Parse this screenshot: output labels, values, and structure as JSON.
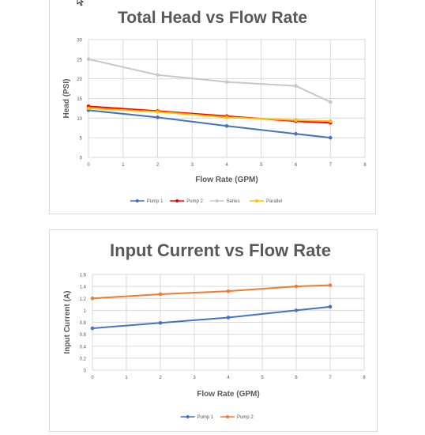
{
  "chart_data": [
    {
      "type": "line",
      "title": "Total Head vs Flow Rate",
      "xlabel": "Flow Rate (GPM)",
      "ylabel": "Head (PSI)",
      "xlim": [
        0,
        8
      ],
      "ylim": [
        0,
        30
      ],
      "xticks": [
        "0",
        "1",
        "2",
        "3",
        "4",
        "5",
        "6",
        "7",
        "8"
      ],
      "yticks": [
        "0",
        "5",
        "10",
        "15",
        "20",
        "25",
        "30"
      ],
      "grid": true,
      "legend_position": "bottom",
      "series": [
        {
          "name": "Pump 1",
          "color": "#4472c4",
          "x": [
            0,
            2,
            4,
            6,
            7
          ],
          "values": [
            12,
            10.2,
            8,
            6,
            5
          ]
        },
        {
          "name": "Pump 2",
          "color": "#ff0000",
          "x": [
            0,
            2,
            4,
            6,
            7
          ],
          "values": [
            13,
            11.8,
            10.5,
            9.2,
            8.8
          ]
        },
        {
          "name": "Series",
          "color": "#c8c8c8",
          "x": [
            0,
            2,
            4,
            6,
            7
          ],
          "values": [
            25,
            21,
            19.2,
            18.2,
            14.1
          ]
        },
        {
          "name": "Parallel",
          "color": "#ffc000",
          "x": [
            0,
            2,
            4,
            6,
            7
          ],
          "values": [
            12.5,
            11.6,
            10.2,
            9.5,
            9.2
          ]
        }
      ]
    },
    {
      "type": "line",
      "title": "Input Current vs Flow Rate",
      "xlabel": "Flow Rate (GPM)",
      "ylabel": "Input Current (A)",
      "xlim": [
        0,
        8
      ],
      "ylim": [
        0,
        1.6
      ],
      "xticks": [
        "0",
        "1",
        "2",
        "3",
        "4",
        "5",
        "6",
        "7",
        "8"
      ],
      "yticks": [
        "0",
        "0.2",
        "0.4",
        "0.6",
        "0.8",
        "1",
        "1.2",
        "1.4",
        "1.6"
      ],
      "grid": true,
      "legend_position": "bottom",
      "series": [
        {
          "name": "Pump 1",
          "color": "#4472c4",
          "x": [
            0,
            2,
            4,
            6,
            7
          ],
          "values": [
            0.7,
            0.79,
            0.88,
            1.0,
            1.06
          ]
        },
        {
          "name": "Pump 2",
          "color": "#ed7d31",
          "x": [
            0,
            2,
            4,
            6,
            7
          ],
          "values": [
            1.2,
            1.27,
            1.32,
            1.4,
            1.42
          ]
        }
      ]
    }
  ]
}
